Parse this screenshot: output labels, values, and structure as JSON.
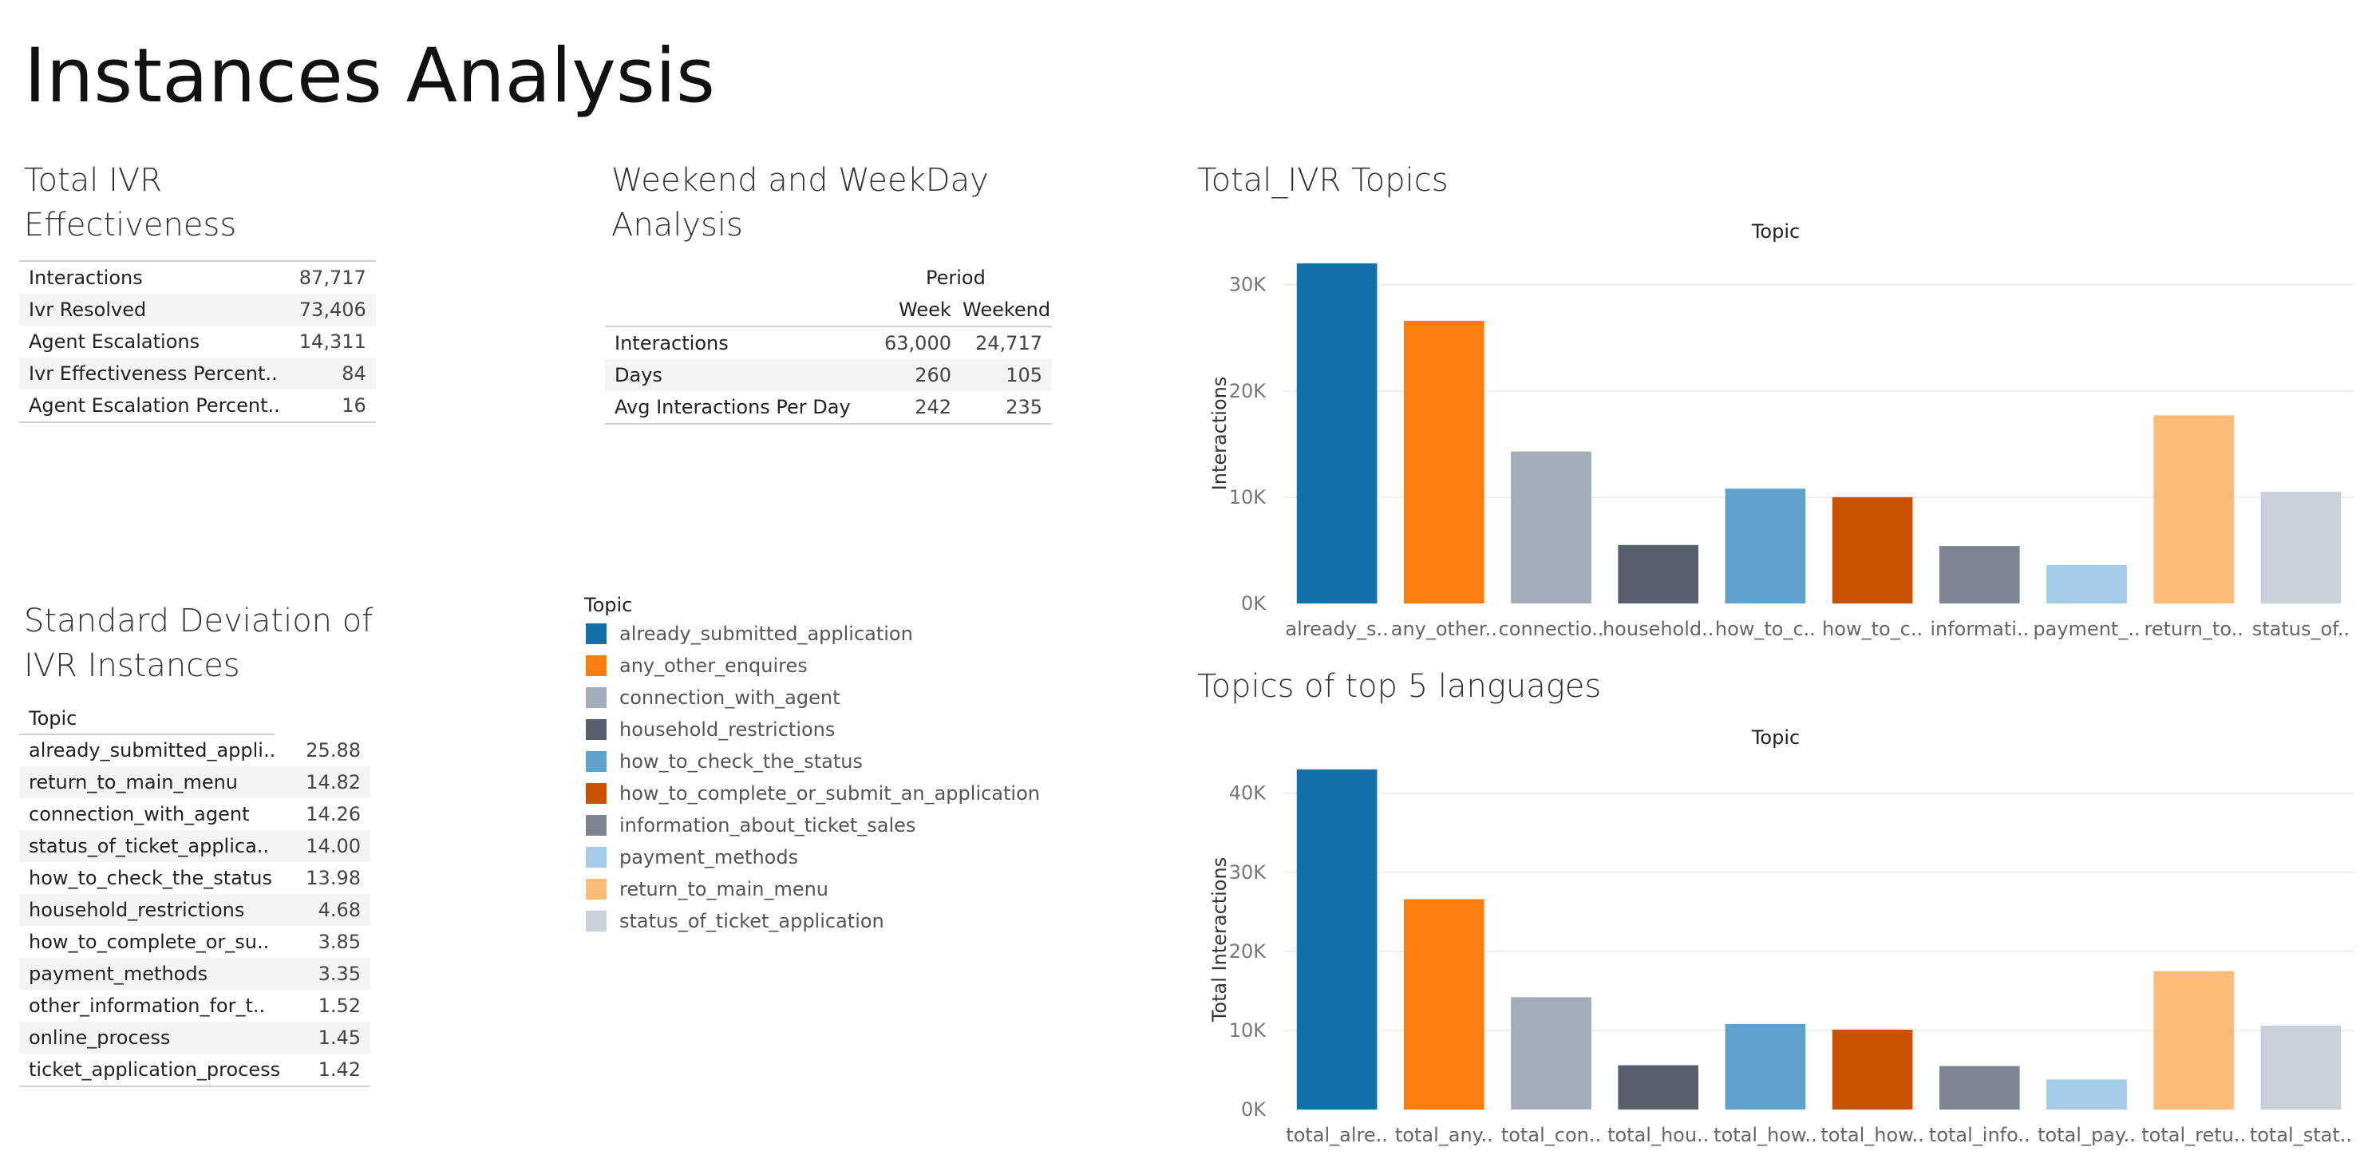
{
  "title": "Instances Analysis",
  "colors": {
    "already_submitted_application": "#1170aa",
    "any_other_enquires": "#fc7d0b",
    "connection_with_agent": "#a3acb9",
    "household_restrictions": "#57606c",
    "how_to_check_the_status": "#5fa2ce",
    "how_to_complete_or_submit_an_application": "#c85200",
    "information_about_ticket_sales": "#7b848f",
    "payment_methods": "#a3cce9",
    "return_to_main_menu": "#ffbc79",
    "status_of_ticket_application": "#c8d0d9"
  },
  "effectiveness": {
    "title": [
      "Total IVR",
      "Effectiveness"
    ],
    "rows": [
      {
        "label": "Interactions",
        "value": "87,717"
      },
      {
        "label": "Ivr Resolved",
        "value": "73,406"
      },
      {
        "label": "Agent Escalations",
        "value": "14,311"
      },
      {
        "label": "Ivr Effectiveness Percent..",
        "value": "84"
      },
      {
        "label": "Agent Escalation Percent..",
        "value": "16"
      }
    ]
  },
  "weekend": {
    "title": [
      "Weekend and WeekDay",
      "Analysis"
    ],
    "period_label": "Period",
    "columns": [
      "Week",
      "Weekend"
    ],
    "rows": [
      {
        "label": "Interactions",
        "week": "63,000",
        "weekend": "24,717"
      },
      {
        "label": "Days",
        "week": "260",
        "weekend": "105"
      },
      {
        "label": "Avg Interactions Per Day",
        "week": "242",
        "weekend": "235"
      }
    ]
  },
  "stddev": {
    "title": [
      "Standard Deviation of",
      "IVR Instances"
    ],
    "header": "Topic",
    "rows": [
      {
        "label": "already_submitted_appli..",
        "value": "25.88"
      },
      {
        "label": "return_to_main_menu",
        "value": "14.82"
      },
      {
        "label": "connection_with_agent",
        "value": "14.26"
      },
      {
        "label": "status_of_ticket_applica..",
        "value": "14.00"
      },
      {
        "label": "how_to_check_the_status",
        "value": "13.98"
      },
      {
        "label": "household_restrictions",
        "value": "4.68"
      },
      {
        "label": "how_to_complete_or_su..",
        "value": "3.85"
      },
      {
        "label": "payment_methods",
        "value": "3.35"
      },
      {
        "label": "other_information_for_t..",
        "value": "1.52"
      },
      {
        "label": "online_process",
        "value": "1.45"
      },
      {
        "label": "ticket_application_process",
        "value": "1.42"
      }
    ]
  },
  "legend": {
    "title": "Topic",
    "items": [
      {
        "label": "already_submitted_application",
        "color": "#1170aa"
      },
      {
        "label": "any_other_enquires",
        "color": "#fc7d0b"
      },
      {
        "label": "connection_with_agent",
        "color": "#a3acb9"
      },
      {
        "label": "household_restrictions",
        "color": "#57606c"
      },
      {
        "label": "how_to_check_the_status",
        "color": "#5fa2ce"
      },
      {
        "label": "how_to_complete_or_submit_an_application",
        "color": "#c85200"
      },
      {
        "label": "information_about_ticket_sales",
        "color": "#7b848f"
      },
      {
        "label": "payment_methods",
        "color": "#a3cce9"
      },
      {
        "label": "return_to_main_menu",
        "color": "#ffbc79"
      },
      {
        "label": "status_of_ticket_application",
        "color": "#c8d0d9"
      }
    ]
  },
  "chart_data": [
    {
      "type": "bar",
      "title": "Total_IVR Topics",
      "header": "Topic",
      "ylabel": "Interactions",
      "ylim": [
        0,
        32000
      ],
      "yticks": [
        0,
        10000,
        20000,
        30000
      ],
      "ytick_labels": [
        "0K",
        "10K",
        "20K",
        "30K"
      ],
      "grid": true,
      "categories": [
        "already_s..",
        "any_other..",
        "connectio..",
        "household..",
        "how_to_c..",
        "how_to_c..",
        "informati..",
        "payment_..",
        "return_to..",
        "status_of.."
      ],
      "values": [
        32000,
        26600,
        14300,
        5500,
        10800,
        10000,
        5400,
        3600,
        17700,
        10500
      ],
      "colors": [
        "#1170aa",
        "#fc7d0b",
        "#a3acb9",
        "#57606c",
        "#5fa2ce",
        "#c85200",
        "#7b848f",
        "#a3cce9",
        "#ffbc79",
        "#c8d0d9"
      ]
    },
    {
      "type": "bar",
      "title": "Topics of top 5 languages",
      "header": "Topic",
      "ylabel": "Total Interactions",
      "ylim": [
        0,
        43000
      ],
      "yticks": [
        0,
        10000,
        20000,
        30000,
        40000
      ],
      "ytick_labels": [
        "0K",
        "10K",
        "20K",
        "30K",
        "40K"
      ],
      "grid": true,
      "categories": [
        "total_alre..",
        "total_any..",
        "total_con..",
        "total_hou..",
        "total_how..",
        "total_how..",
        "total_info..",
        "total_pay..",
        "total_retu..",
        "total_stat.."
      ],
      "values": [
        43000,
        26600,
        14200,
        5600,
        10800,
        10100,
        5500,
        3800,
        17500,
        10600
      ],
      "colors": [
        "#1170aa",
        "#fc7d0b",
        "#a3acb9",
        "#57606c",
        "#5fa2ce",
        "#c85200",
        "#7b848f",
        "#a3cce9",
        "#ffbc79",
        "#c8d0d9"
      ]
    }
  ]
}
